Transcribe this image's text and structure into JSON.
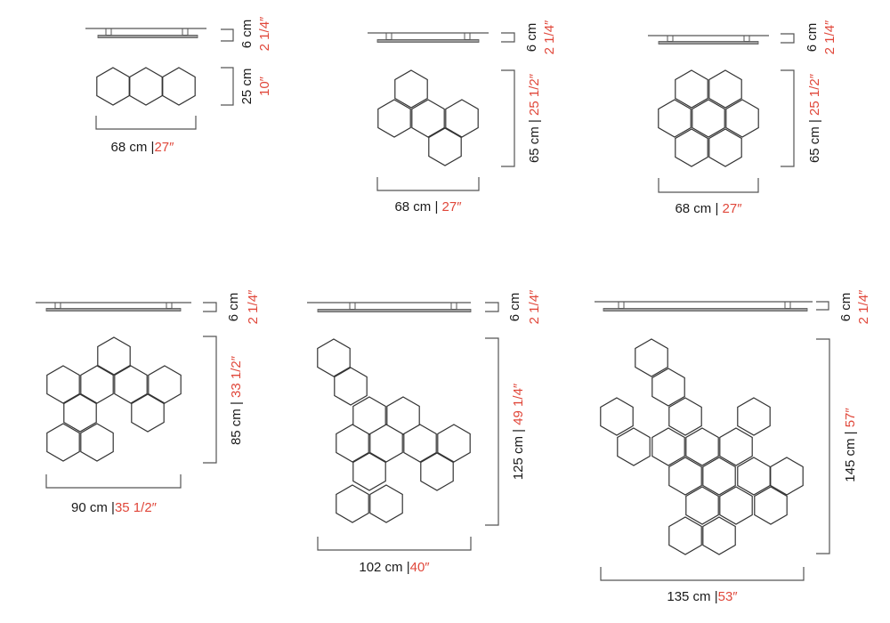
{
  "colors": {
    "text": "#1a1a1a",
    "imperial_accent": "#e0473a",
    "line": "#555555"
  },
  "panels": [
    {
      "depth_cm": "6 cm",
      "depth_in": "2 1/4″",
      "height_cm": "25 cm",
      "height_in": "10″",
      "width_cm": "68 cm |",
      "width_in": "27″"
    },
    {
      "depth_cm": "6 cm",
      "depth_in": "2 1/4″",
      "height_cm": "65 cm | ",
      "height_in": "25 1/2″",
      "width_cm": "68 cm | ",
      "width_in": "27″"
    },
    {
      "depth_cm": "6 cm",
      "depth_in": "2 1/4″",
      "height_cm": "65 cm | ",
      "height_in": "25 1/2″",
      "width_cm": "68 cm | ",
      "width_in": "27″"
    },
    {
      "depth_cm": "6 cm",
      "depth_in": "2 1/4″",
      "height_cm": "85 cm | ",
      "height_in": "33 1/2″",
      "width_cm": "90 cm |",
      "width_in": "35 1/2″"
    },
    {
      "depth_cm": "6 cm",
      "depth_in": "2 1/4″",
      "height_cm": "125 cm | ",
      "height_in": "49 1/4″",
      "width_cm": "102 cm |",
      "width_in": "40″"
    },
    {
      "depth_cm": "6 cm",
      "depth_in": "2 1/4″",
      "height_cm": "145 cm | ",
      "height_in": "57″",
      "width_cm": "135 cm |",
      "width_in": "53″"
    }
  ]
}
